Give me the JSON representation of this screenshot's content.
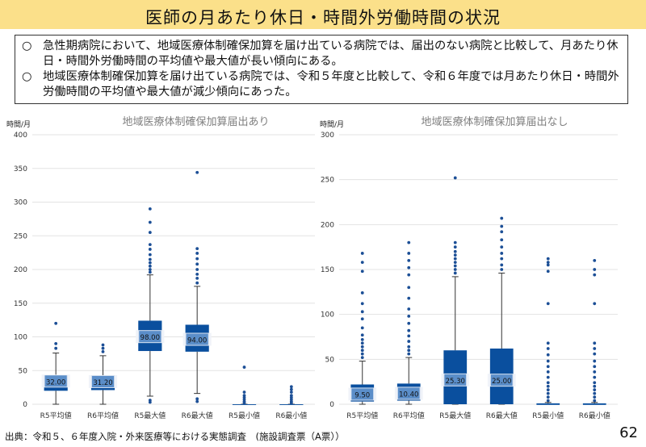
{
  "title": "医師の月あたり休日・時間外労働時間の状況",
  "bullets": [
    {
      "mark": "○",
      "text": "急性期病院において、地域医療体制確保加算を届け出ている病院では、届出のない病院と比較して、月あたり休日・時間外労働時間の平均値や最大値が長い傾向にある。"
    },
    {
      "mark": "○",
      "text": "地域医療体制確保加算を届け出ている病院では、令和５年度と比較して、令和６年度では月あたり休日・時間外労働時間の平均値や最大値が減少傾向にあった。"
    }
  ],
  "source": "出典：令和５、６年度入院・外来医療等における実態調査　(施設調査票（A票））",
  "page_number": "62",
  "colors": {
    "title_bg": "#fbe08a",
    "box_dark": "#0a4f9e",
    "box_light": "#5b8ec9",
    "outlier": "#1c4f96"
  },
  "chart_data": [
    {
      "type": "box",
      "title": "地域医療体制確保加算届出あり",
      "ylabel": "時間/月",
      "ylim": [
        0,
        400
      ],
      "yticks": [
        0,
        50,
        100,
        150,
        200,
        250,
        300,
        350,
        400
      ],
      "categories": [
        "R5平均値",
        "R6平均値",
        "R5最大値",
        "R6最大値",
        "R5最小値",
        "R6最小値"
      ],
      "series": [
        {
          "category": "R5平均値",
          "median": 32,
          "label": "32.00",
          "q1": 20,
          "q3": 43,
          "whisker_low": 0,
          "whisker_high": 76,
          "outliers": [
            83,
            90,
            120
          ]
        },
        {
          "category": "R6平均値",
          "median": 31.2,
          "label": "31.20",
          "q1": 21,
          "q3": 43,
          "whisker_low": 0,
          "whisker_high": 72,
          "outliers": [
            78,
            83,
            88
          ]
        },
        {
          "category": "R5最大値",
          "median": 98,
          "label": "98.00",
          "q1": 79,
          "q3": 124,
          "whisker_low": 12,
          "whisker_high": 192,
          "outliers": [
            3,
            6,
            196,
            200,
            205,
            210,
            215,
            222,
            230,
            237,
            255,
            270,
            290
          ]
        },
        {
          "category": "R6最大値",
          "median": 94,
          "label": "94.00",
          "q1": 78,
          "q3": 118,
          "whisker_low": 16,
          "whisker_high": 175,
          "outliers": [
            4,
            8,
            180,
            187,
            193,
            200,
            208,
            216,
            224,
            231,
            344
          ]
        },
        {
          "category": "R5最小値",
          "median": 0,
          "label": "",
          "q1": 0,
          "q3": 0,
          "whisker_low": 0,
          "whisker_high": 0,
          "outliers": [
            2,
            4,
            7,
            10,
            13,
            18,
            55
          ]
        },
        {
          "category": "R6最小値",
          "median": 0,
          "label": "",
          "q1": 0,
          "q3": 0,
          "whisker_low": 0,
          "whisker_high": 0,
          "outliers": [
            2,
            4,
            7,
            10,
            13,
            18,
            22,
            26
          ]
        }
      ]
    },
    {
      "type": "box",
      "title": "地域医療体制確保加算届出なし",
      "ylabel": "時間/月",
      "ylim": [
        0,
        300
      ],
      "yticks": [
        0,
        50,
        100,
        150,
        200,
        250,
        300
      ],
      "categories": [
        "R5平均値",
        "R6平均値",
        "R5最大値",
        "R6最大値",
        "R5最小値",
        "R6最小値"
      ],
      "series": [
        {
          "category": "R5平均値",
          "median": 9.5,
          "label": "9.50",
          "q1": 3,
          "q3": 22,
          "whisker_low": 0,
          "whisker_high": 48,
          "outliers": [
            52,
            56,
            60,
            64,
            68,
            72,
            77,
            85,
            95,
            103,
            112,
            124,
            148,
            158,
            168
          ]
        },
        {
          "category": "R6平均値",
          "median": 10.4,
          "label": "10.40",
          "q1": 4,
          "q3": 23,
          "whisker_low": 0,
          "whisker_high": 52,
          "outliers": [
            56,
            60,
            64,
            70,
            76,
            82,
            90,
            98,
            106,
            118,
            130,
            144,
            152,
            160,
            168,
            180
          ]
        },
        {
          "category": "R5最大値",
          "median": 25.3,
          "label": "25.30",
          "q1": 0,
          "q3": 60,
          "whisker_low": 0,
          "whisker_high": 142,
          "outliers": [
            146,
            150,
            154,
            158,
            162,
            166,
            170,
            175,
            180,
            252
          ]
        },
        {
          "category": "R6最大値",
          "median": 25,
          "label": "25.00",
          "q1": 0,
          "q3": 62,
          "whisker_low": 0,
          "whisker_high": 146,
          "outliers": [
            150,
            155,
            162,
            168,
            175,
            183,
            192,
            198,
            207
          ]
        },
        {
          "category": "R5最小値",
          "median": 0,
          "label": "",
          "q1": 0,
          "q3": 1,
          "whisker_low": 0,
          "whisker_high": 2,
          "outliers": [
            4,
            8,
            12,
            16,
            20,
            24,
            30,
            36,
            42,
            48,
            55,
            62,
            68,
            112,
            148,
            155,
            158,
            162
          ]
        },
        {
          "category": "R6最小値",
          "median": 0,
          "label": "",
          "q1": 0,
          "q3": 1,
          "whisker_low": 0,
          "whisker_high": 2,
          "outliers": [
            4,
            8,
            12,
            16,
            20,
            24,
            30,
            36,
            42,
            48,
            56,
            62,
            68,
            112,
            144,
            150,
            160
          ]
        }
      ]
    }
  ]
}
